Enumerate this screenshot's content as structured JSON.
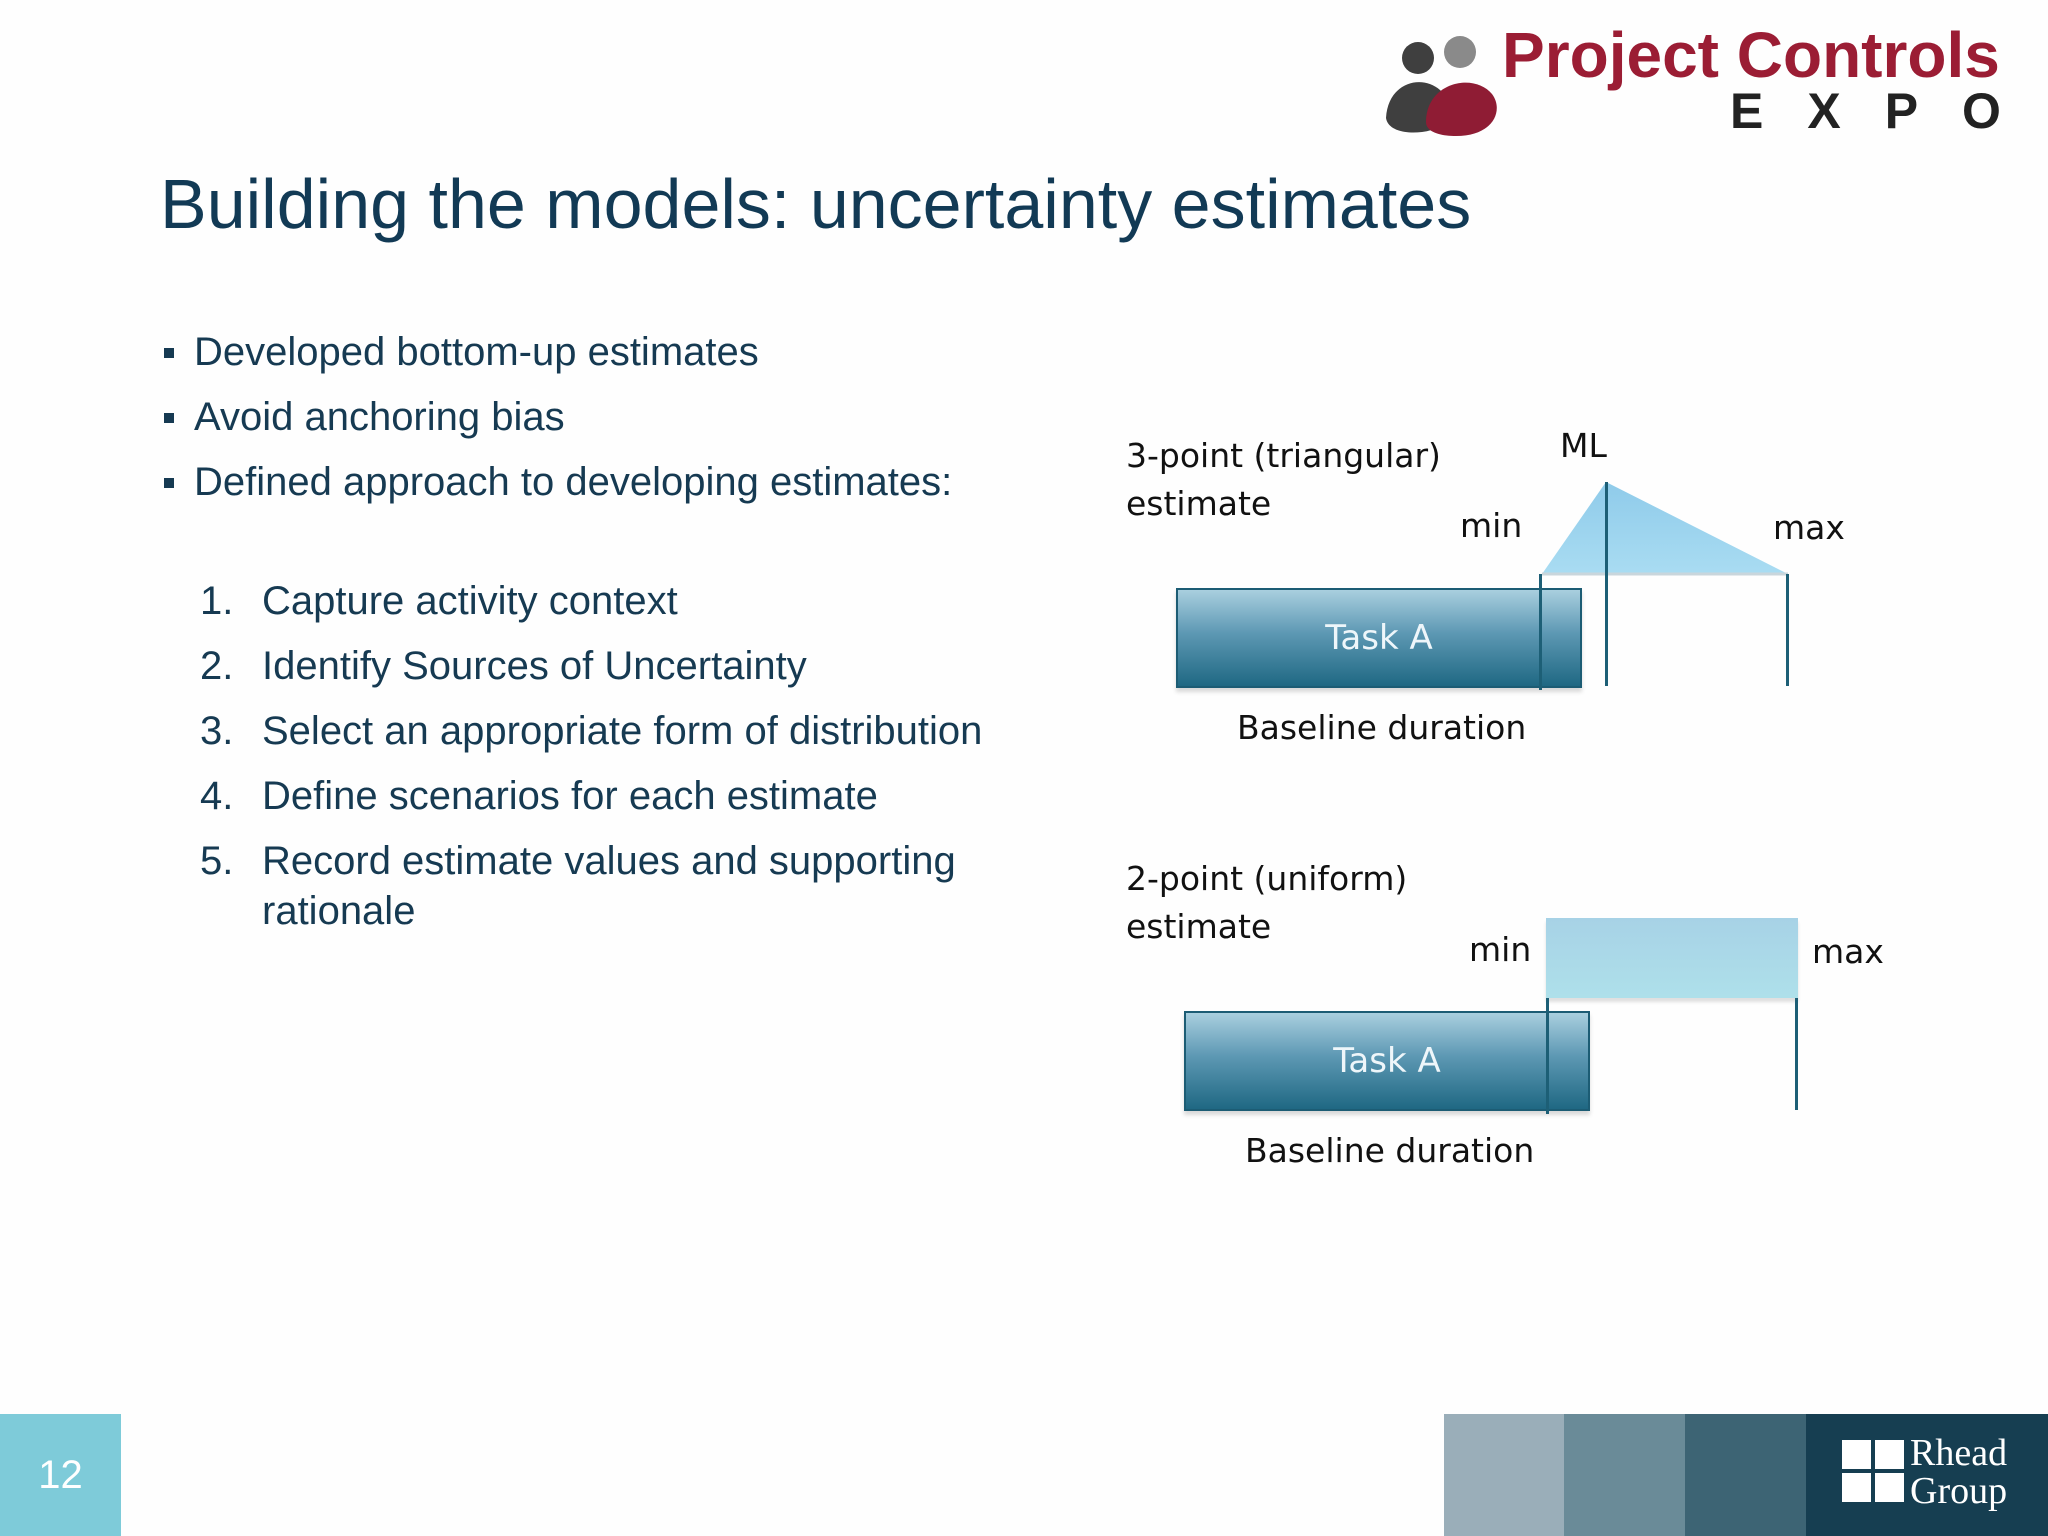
{
  "header": {
    "logo_title": "Project Controls",
    "logo_subtitle": "EXPO",
    "logo_colors": {
      "dark": "#3f3f3f",
      "red": "#8f1c34"
    }
  },
  "title": "Building the models: uncertainty estimates",
  "bullets": [
    "Developed bottom-up estimates",
    "Avoid anchoring bias",
    "Defined approach to developing estimates:"
  ],
  "steps": [
    {
      "num": "1.",
      "text": "Capture activity context"
    },
    {
      "num": "2.",
      "text": "Identify Sources of Uncertainty"
    },
    {
      "num": "3.",
      "text": "Select an appropriate form of distribution"
    },
    {
      "num": "4.",
      "text": "Define scenarios for each estimate"
    },
    {
      "num": "5.",
      "text": "Record estimate values and supporting rationale"
    }
  ],
  "diagram_triangular": {
    "label": "3-point (triangular)\nestimate",
    "ml_label": "ML",
    "min_label": "min",
    "max_label": "max",
    "task_label": "Task A",
    "baseline_label": "Baseline duration"
  },
  "diagram_uniform": {
    "label": "2-point (uniform)\nestimate",
    "min_label": "min",
    "max_label": "max",
    "task_label": "Task A",
    "baseline_label": "Baseline duration"
  },
  "footer": {
    "page_number": "12",
    "brand": "Rhead\nGroup",
    "colors": [
      "#9aaeb9",
      "#6a8b98",
      "#3d6474",
      "#163e51"
    ],
    "page_box_color": "#7ecbd9"
  }
}
